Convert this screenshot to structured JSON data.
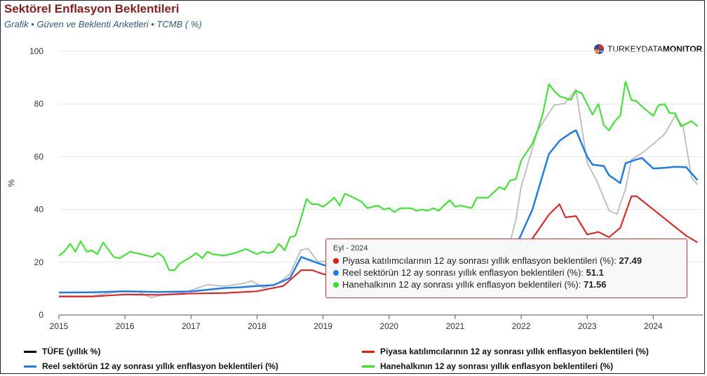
{
  "header": {
    "title": "Sektörel Enflasyon Beklentileri",
    "subtitle": "Grafik • Güven ve Beklenti Anketleri • TCMB ( %)"
  },
  "logo": {
    "light": "TURKEYDATA",
    "bold": "MONITOR"
  },
  "colors": {
    "tufe": "#c0c0c0",
    "piyasa": "#f21414",
    "reel": "#1a7ef0",
    "hane": "#2ee820"
  },
  "chart_data": {
    "type": "line",
    "ylabel": "%",
    "ylim": [
      0,
      100
    ],
    "yticks": [
      0,
      20,
      40,
      60,
      80,
      100
    ],
    "xlim": [
      2015.0,
      2024.75
    ],
    "xticks": [
      "2015",
      "2016",
      "2017",
      "2018",
      "2019",
      "2020",
      "2021",
      "2022",
      "2023",
      "2024"
    ],
    "series": [
      {
        "name": "TÜFE (yıllık %)",
        "legend_color": "#000000",
        "color": "#c0c0c0",
        "points": [
          [
            2015.0,
            7.2
          ],
          [
            2015.5,
            7.2
          ],
          [
            2015.9,
            8.8
          ],
          [
            2016.2,
            8.8
          ],
          [
            2016.4,
            6.6
          ],
          [
            2016.55,
            7.6
          ],
          [
            2016.9,
            8.5
          ],
          [
            2017.25,
            11.5
          ],
          [
            2017.5,
            10.9
          ],
          [
            2017.8,
            12.0
          ],
          [
            2017.92,
            12.9
          ],
          [
            2018.1,
            10.3
          ],
          [
            2018.33,
            12.2
          ],
          [
            2018.5,
            15.5
          ],
          [
            2018.66,
            24.5
          ],
          [
            2018.77,
            25.2
          ],
          [
            2018.92,
            20.3
          ],
          [
            2019.05,
            20.3
          ],
          [
            2019.5,
            15.7
          ],
          [
            2019.75,
            8.5
          ],
          [
            2019.92,
            11.8
          ],
          [
            2020.25,
            11.0
          ],
          [
            2020.5,
            12.0
          ],
          [
            2020.75,
            11.9
          ],
          [
            2021.0,
            14.6
          ],
          [
            2021.25,
            17.1
          ],
          [
            2021.5,
            18.9
          ],
          [
            2021.75,
            19.6
          ],
          [
            2021.92,
            36.1
          ],
          [
            2022.0,
            48.7
          ],
          [
            2022.25,
            69.97
          ],
          [
            2022.5,
            79.6
          ],
          [
            2022.66,
            80.2
          ],
          [
            2022.83,
            85.5
          ],
          [
            2023.0,
            57.7
          ],
          [
            2023.15,
            50.5
          ],
          [
            2023.33,
            39.6
          ],
          [
            2023.45,
            38.2
          ],
          [
            2023.58,
            47.8
          ],
          [
            2023.67,
            58.9
          ],
          [
            2023.83,
            61.4
          ],
          [
            2024.0,
            64.8
          ],
          [
            2024.17,
            68.5
          ],
          [
            2024.33,
            75.5
          ],
          [
            2024.45,
            71.6
          ],
          [
            2024.58,
            52.0
          ],
          [
            2024.67,
            49.4
          ]
        ]
      },
      {
        "name": "Piyasa katılımcılarının 12 ay sonrası yıllık enflasyon beklentileri (%)",
        "legend_color": "#f21414",
        "color": "#f21414",
        "points": [
          [
            2015.0,
            7.0
          ],
          [
            2015.5,
            7.0
          ],
          [
            2016.0,
            7.8
          ],
          [
            2016.5,
            7.6
          ],
          [
            2017.0,
            8.1
          ],
          [
            2017.5,
            8.3
          ],
          [
            2018.0,
            9.0
          ],
          [
            2018.4,
            11.0
          ],
          [
            2018.67,
            17.0
          ],
          [
            2018.83,
            17.0
          ],
          [
            2019.0,
            15.5
          ],
          [
            2019.5,
            14.5
          ],
          [
            2020.0,
            10.5
          ],
          [
            2020.5,
            11.0
          ],
          [
            2021.0,
            11.5
          ],
          [
            2021.5,
            13.5
          ],
          [
            2021.92,
            20.0
          ],
          [
            2022.17,
            29.0
          ],
          [
            2022.42,
            38.0
          ],
          [
            2022.58,
            42.0
          ],
          [
            2022.67,
            37.0
          ],
          [
            2022.83,
            37.5
          ],
          [
            2023.0,
            30.5
          ],
          [
            2023.17,
            31.5
          ],
          [
            2023.33,
            29.5
          ],
          [
            2023.5,
            33.0
          ],
          [
            2023.67,
            45.0
          ],
          [
            2023.75,
            45.0
          ],
          [
            2024.0,
            40.0
          ],
          [
            2024.25,
            35.0
          ],
          [
            2024.5,
            30.0
          ],
          [
            2024.67,
            27.49
          ]
        ]
      },
      {
        "name": "Reel sektörün 12 ay sonrası yıllık enflasyon beklentileri (%)",
        "legend_color": "#1a7ef0",
        "color": "#1a7ef0",
        "points": [
          [
            2015.0,
            8.5
          ],
          [
            2015.5,
            8.6
          ],
          [
            2016.0,
            9.0
          ],
          [
            2016.5,
            8.7
          ],
          [
            2017.0,
            8.9
          ],
          [
            2017.5,
            10.2
          ],
          [
            2017.75,
            10.5
          ],
          [
            2018.0,
            11.0
          ],
          [
            2018.25,
            11.3
          ],
          [
            2018.5,
            14.0
          ],
          [
            2018.67,
            22.0
          ],
          [
            2018.83,
            20.5
          ],
          [
            2019.0,
            19.0
          ],
          [
            2019.5,
            16.0
          ],
          [
            2020.0,
            12.5
          ],
          [
            2020.5,
            12.0
          ],
          [
            2021.0,
            14.0
          ],
          [
            2021.5,
            17.0
          ],
          [
            2021.92,
            26.0
          ],
          [
            2022.17,
            40.0
          ],
          [
            2022.42,
            61.0
          ],
          [
            2022.58,
            66.0
          ],
          [
            2022.75,
            69.0
          ],
          [
            2022.83,
            70.0
          ],
          [
            2023.0,
            60.0
          ],
          [
            2023.08,
            57.0
          ],
          [
            2023.25,
            56.5
          ],
          [
            2023.33,
            53.0
          ],
          [
            2023.5,
            50.0
          ],
          [
            2023.58,
            57.5
          ],
          [
            2023.75,
            59.0
          ],
          [
            2023.83,
            59.5
          ],
          [
            2024.0,
            55.5
          ],
          [
            2024.17,
            55.8
          ],
          [
            2024.33,
            56.2
          ],
          [
            2024.5,
            56.0
          ],
          [
            2024.67,
            51.1
          ]
        ]
      },
      {
        "name": "Hanehalkının 12 ay sonrası yıllık enflasyon beklentileri (%)",
        "legend_color": "#2ee820",
        "color": "#2ee820",
        "points": [
          [
            2015.0,
            22.5
          ],
          [
            2015.08,
            24.0
          ],
          [
            2015.17,
            27.0
          ],
          [
            2015.25,
            24.0
          ],
          [
            2015.33,
            28.0
          ],
          [
            2015.42,
            24.0
          ],
          [
            2015.5,
            24.5
          ],
          [
            2015.58,
            23.0
          ],
          [
            2015.67,
            27.5
          ],
          [
            2015.83,
            22.0
          ],
          [
            2015.92,
            21.5
          ],
          [
            2016.08,
            24.0
          ],
          [
            2016.25,
            23.0
          ],
          [
            2016.42,
            22.0
          ],
          [
            2016.5,
            23.5
          ],
          [
            2016.58,
            22.0
          ],
          [
            2016.67,
            17.0
          ],
          [
            2016.75,
            17.0
          ],
          [
            2016.83,
            19.5
          ],
          [
            2017.0,
            22.0
          ],
          [
            2017.08,
            23.5
          ],
          [
            2017.17,
            21.5
          ],
          [
            2017.25,
            24.0
          ],
          [
            2017.33,
            23.0
          ],
          [
            2017.5,
            22.5
          ],
          [
            2017.67,
            23.5
          ],
          [
            2017.83,
            25.0
          ],
          [
            2018.0,
            23.0
          ],
          [
            2018.08,
            24.0
          ],
          [
            2018.17,
            23.5
          ],
          [
            2018.25,
            24.0
          ],
          [
            2018.33,
            27.0
          ],
          [
            2018.42,
            24.5
          ],
          [
            2018.5,
            29.5
          ],
          [
            2018.58,
            30.0
          ],
          [
            2018.67,
            37.0
          ],
          [
            2018.75,
            44.0
          ],
          [
            2018.83,
            42.0
          ],
          [
            2018.92,
            42.0
          ],
          [
            2019.0,
            41.0
          ],
          [
            2019.08,
            42.5
          ],
          [
            2019.17,
            44.5
          ],
          [
            2019.25,
            41.5
          ],
          [
            2019.33,
            46.0
          ],
          [
            2019.42,
            45.0
          ],
          [
            2019.58,
            43.0
          ],
          [
            2019.67,
            40.5
          ],
          [
            2019.83,
            41.5
          ],
          [
            2019.92,
            40.0
          ],
          [
            2020.0,
            40.5
          ],
          [
            2020.08,
            39.0
          ],
          [
            2020.17,
            40.5
          ],
          [
            2020.33,
            40.5
          ],
          [
            2020.42,
            39.5
          ],
          [
            2020.5,
            40.0
          ],
          [
            2020.58,
            39.5
          ],
          [
            2020.67,
            40.5
          ],
          [
            2020.75,
            39.5
          ],
          [
            2020.83,
            41.5
          ],
          [
            2020.92,
            43.5
          ],
          [
            2021.0,
            41.0
          ],
          [
            2021.08,
            41.5
          ],
          [
            2021.25,
            40.5
          ],
          [
            2021.33,
            44.5
          ],
          [
            2021.5,
            44.5
          ],
          [
            2021.67,
            48.5
          ],
          [
            2021.75,
            47.5
          ],
          [
            2021.83,
            51.0
          ],
          [
            2021.92,
            51.5
          ],
          [
            2022.0,
            58.5
          ],
          [
            2022.17,
            65.0
          ],
          [
            2022.25,
            70.0
          ],
          [
            2022.33,
            76.5
          ],
          [
            2022.42,
            87.5
          ],
          [
            2022.5,
            85.0
          ],
          [
            2022.58,
            83.0
          ],
          [
            2022.75,
            81.5
          ],
          [
            2022.83,
            85.0
          ],
          [
            2022.92,
            84.0
          ],
          [
            2023.0,
            80.0
          ],
          [
            2023.08,
            76.0
          ],
          [
            2023.17,
            80.0
          ],
          [
            2023.25,
            72.0
          ],
          [
            2023.33,
            70.0
          ],
          [
            2023.42,
            73.5
          ],
          [
            2023.5,
            75.5
          ],
          [
            2023.58,
            88.5
          ],
          [
            2023.67,
            81.5
          ],
          [
            2023.75,
            81.0
          ],
          [
            2023.83,
            79.0
          ],
          [
            2024.0,
            75.5
          ],
          [
            2024.08,
            79.5
          ],
          [
            2024.17,
            80.0
          ],
          [
            2024.25,
            76.5
          ],
          [
            2024.33,
            76.5
          ],
          [
            2024.42,
            71.5
          ],
          [
            2024.58,
            73.5
          ],
          [
            2024.67,
            71.56
          ]
        ]
      }
    ]
  },
  "tooltip": {
    "header": "Eyl - 2024",
    "rows": [
      {
        "label": "Piyasa katılımcılarının 12 ay sonrası yıllık enflasyon beklentileri (%):",
        "value": "27.49",
        "color": "#f21414"
      },
      {
        "label": "Reel sektörün 12 ay sonrası yıllık enflasyon beklentileri (%):",
        "value": "51.1",
        "color": "#1a7ef0"
      },
      {
        "label": "Hanehalkının 12 ay sonrası yıllık enflasyon beklentileri (%):",
        "value": "71.56",
        "color": "#2ee820"
      }
    ]
  }
}
